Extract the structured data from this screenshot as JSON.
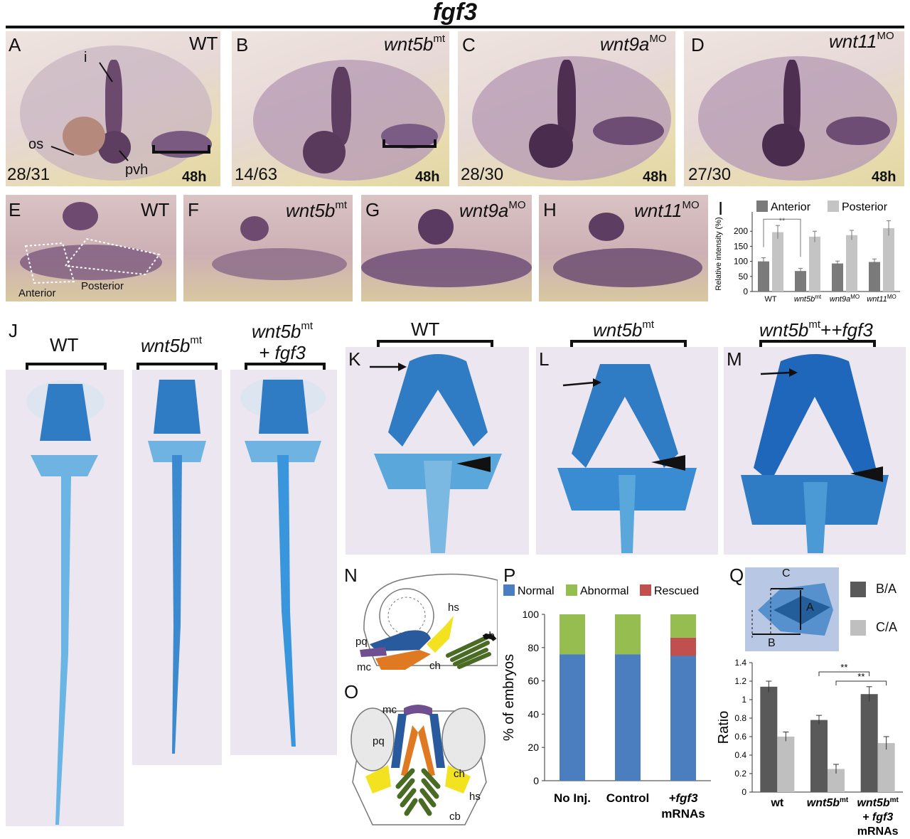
{
  "figure_title": "fgf3",
  "top_row": [
    {
      "letter": "A",
      "genotype": "WT",
      "sup": "",
      "count": "28/31",
      "stage": "48h",
      "labels": {
        "i": "i",
        "os": "os",
        "pvh": "pvh"
      }
    },
    {
      "letter": "B",
      "genotype": "wnt5b",
      "sup": "mt",
      "count": "14/63",
      "stage": "48h"
    },
    {
      "letter": "C",
      "genotype": "wnt9a",
      "sup": "MO",
      "count": "28/30",
      "stage": "48h"
    },
    {
      "letter": "D",
      "genotype": "wnt11",
      "sup": "MO",
      "count": "27/30",
      "stage": "48h"
    }
  ],
  "zoom_row": [
    {
      "letter": "E",
      "genotype": "WT",
      "sup": "",
      "anterior": "Anterior",
      "posterior": "Posterior"
    },
    {
      "letter": "F",
      "genotype": "wnt5b",
      "sup": "mt"
    },
    {
      "letter": "G",
      "genotype": "wnt9a",
      "sup": "MO"
    },
    {
      "letter": "H",
      "genotype": "wnt11",
      "sup": "MO"
    }
  ],
  "panel_I": {
    "letter": "I",
    "ylabel": "Relative intensity (%)",
    "legend": [
      "Anterior",
      "Posterior"
    ],
    "significance": "**",
    "colors": {
      "anterior": "#7a7a7a",
      "posterior": "#c4c4c4"
    }
  },
  "panel_J": {
    "letter": "J",
    "columns": [
      {
        "genotype": "WT",
        "sup": "",
        "suffix": ""
      },
      {
        "genotype": "wnt5b",
        "sup": "mt",
        "suffix": ""
      },
      {
        "genotype": "wnt5b",
        "sup": "mt",
        "suffix": "+ fgf3"
      }
    ]
  },
  "panels_KLM": [
    {
      "letter": "K",
      "genotype": "WT",
      "sup": "",
      "suffix": ""
    },
    {
      "letter": "L",
      "genotype": "wnt5b",
      "sup": "mt",
      "suffix": ""
    },
    {
      "letter": "M",
      "genotype": "wnt5b",
      "sup": "mt",
      "suffix": "+fgf3"
    }
  ],
  "panel_N": {
    "letter": "N",
    "labels": {
      "hs": "hs",
      "cb": "cb",
      "pq": "pq",
      "mc": "mc",
      "ch": "ch"
    }
  },
  "panel_O": {
    "letter": "O",
    "labels": {
      "mc": "mc",
      "pq": "pq",
      "ch": "ch",
      "hs": "hs",
      "cb": "cb"
    }
  },
  "panel_P": {
    "letter": "P",
    "ylabel": "% of embryos",
    "legend": [
      "Normal",
      "Abnormal",
      "Rescued"
    ],
    "category_labels": [
      "No Inj.",
      "Control",
      "+fgf3",
      "mRNAs"
    ],
    "colors": {
      "normal": "#4a7ebf",
      "abnormal": "#96bd4f",
      "rescued": "#c0504d"
    }
  },
  "panel_Q": {
    "letter": "Q",
    "ylabel": "Ratio",
    "legend": [
      "B/A",
      "C/A"
    ],
    "inset_labels": [
      "A",
      "B",
      "C"
    ],
    "significance": [
      "**",
      "**"
    ],
    "category_labels": [
      "wt",
      "wnt5b",
      "mt",
      "+ fgf3",
      "mRNAs"
    ],
    "colors": {
      "ba": "#595959",
      "ca": "#bfbfbf"
    }
  },
  "chart_data": [
    {
      "type": "bar",
      "panel": "I",
      "categories": [
        "WT",
        "wnt5bmt",
        "wnt9aMO",
        "wnt11MO"
      ],
      "series": [
        {
          "name": "Anterior",
          "values": [
            100,
            68,
            93,
            98
          ],
          "errors": [
            12,
            9,
            8,
            10
          ]
        },
        {
          "name": "Posterior",
          "values": [
            197,
            182,
            187,
            210
          ],
          "errors": [
            22,
            18,
            16,
            25
          ]
        }
      ],
      "ylim": [
        0,
        250
      ],
      "yticks": [
        0,
        50,
        100,
        150,
        200
      ],
      "ylabel": "Relative intensity (%)",
      "legend_position": "top"
    },
    {
      "type": "bar",
      "panel": "P",
      "stacked": true,
      "categories": [
        "No Inj.",
        "Control",
        "+fgf3 mRNAs"
      ],
      "series": [
        {
          "name": "Normal",
          "values": [
            76,
            76,
            75
          ]
        },
        {
          "name": "Rescued",
          "values": [
            0,
            0,
            11
          ]
        },
        {
          "name": "Abnormal",
          "values": [
            24,
            24,
            14
          ]
        }
      ],
      "ylim": [
        0,
        100
      ],
      "yticks": [
        0,
        20,
        40,
        60,
        80,
        100
      ],
      "ylabel": "% of embryos",
      "legend_position": "top"
    },
    {
      "type": "bar",
      "panel": "Q",
      "categories": [
        "wt",
        "wnt5bmt",
        "wnt5bmt + fgf3 mRNAs"
      ],
      "series": [
        {
          "name": "B/A",
          "values": [
            1.14,
            0.78,
            1.06
          ],
          "errors": [
            0.06,
            0.05,
            0.08
          ]
        },
        {
          "name": "C/A",
          "values": [
            0.6,
            0.25,
            0.53
          ],
          "errors": [
            0.05,
            0.05,
            0.07
          ]
        }
      ],
      "ylim": [
        0,
        1.4
      ],
      "yticks": [
        0,
        0.2,
        0.4,
        0.6,
        0.8,
        1,
        1.2,
        1.4
      ],
      "ylabel": "Ratio",
      "legend_position": "right"
    }
  ]
}
